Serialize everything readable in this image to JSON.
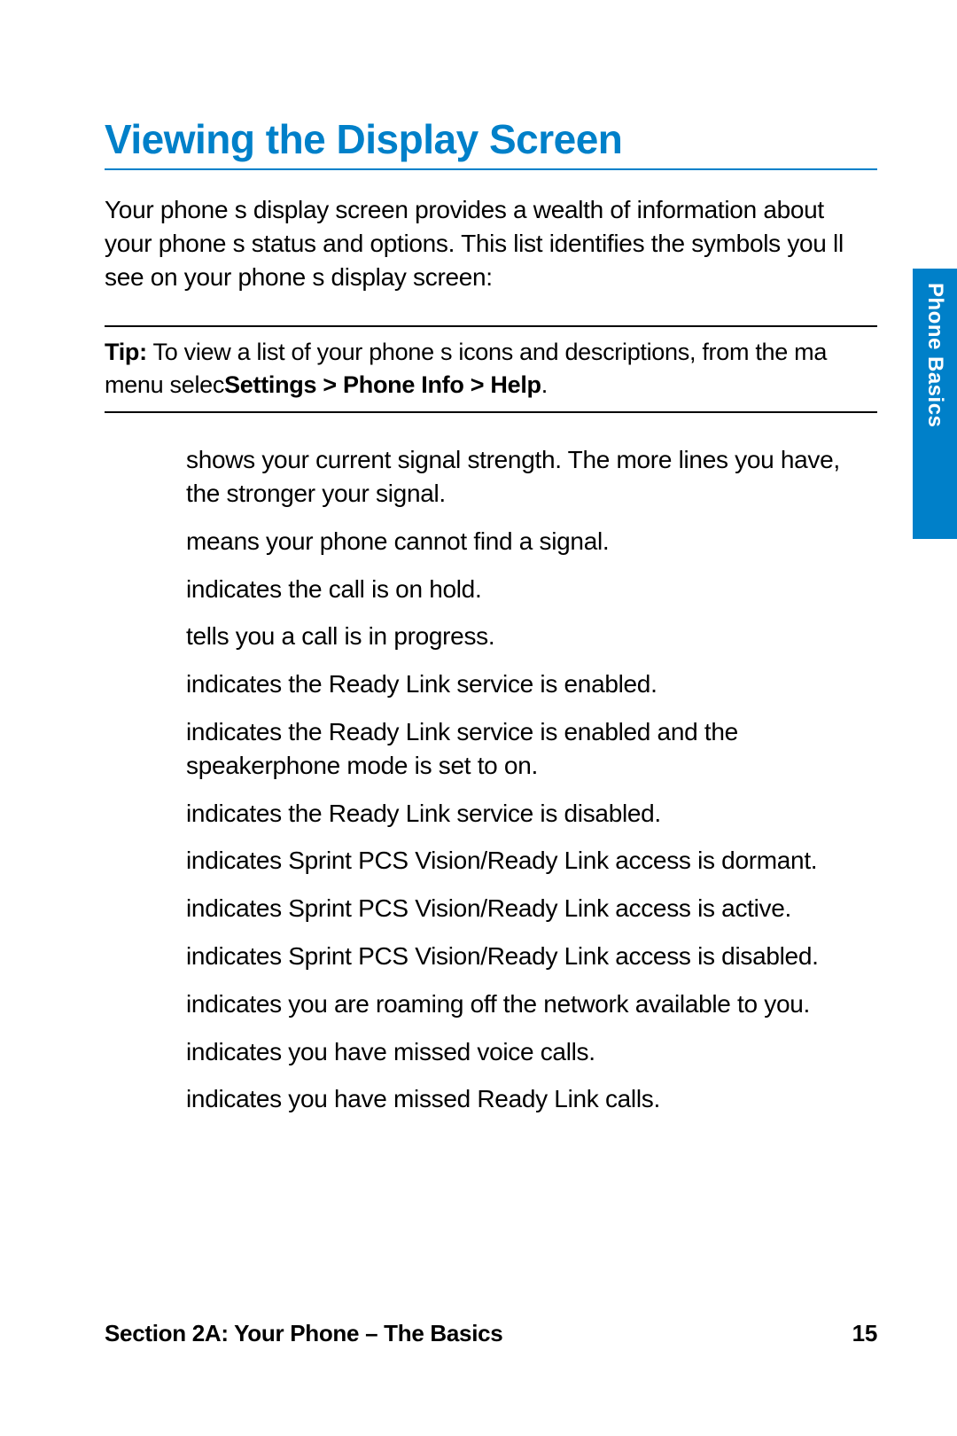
{
  "colors": {
    "accent": "#0080c9",
    "text": "#000000",
    "background": "#ffffff",
    "tab_bg": "#0080c9",
    "tab_text": "#ffffff"
  },
  "title": "Viewing the Display Screen",
  "intro": "Your phone s display screen provides a wealth of information about your phone s status and options. This list identifies the symbols you ll see on your phone s display screen:",
  "tip": {
    "label": "Tip:",
    "before": " To view a list of your phone s icons and descriptions, from the ma menu selec",
    "path": "Settings > Phone Info > Help",
    "after": "."
  },
  "items": [
    "shows your current signal strength. The more lines you have, the stronger your signal.",
    "means your phone cannot find a signal.",
    "indicates the call is on hold.",
    "tells you a call is in progress.",
    "indicates the Ready Link service is enabled.",
    "indicates the Ready Link service is enabled and the speakerphone mode is set to on.",
    "indicates the Ready Link service is disabled.",
    "indicates Sprint PCS Vision/Ready Link access is dormant.",
    "indicates Sprint PCS Vision/Ready Link access is active.",
    "indicates Sprint PCS Vision/Ready Link access is disabled.",
    "indicates you are  roaming  off the network available to you.",
    "indicates you have missed voice calls.",
    "indicates you have missed Ready Link calls."
  ],
  "footer": {
    "section": "Section 2A: Your Phone – The Basics",
    "page": "15"
  },
  "side_tab": "Phone Basics"
}
